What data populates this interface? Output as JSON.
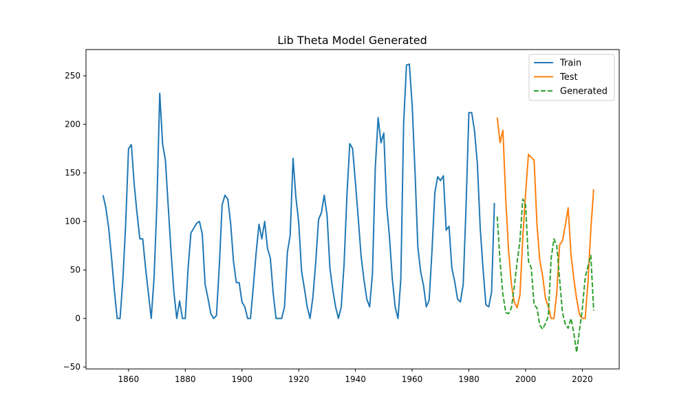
{
  "chart_data": {
    "type": "line",
    "title": "Lib Theta Model Generated",
    "xlabel": "",
    "ylabel": "",
    "xlim": [
      1845,
      2033
    ],
    "ylim": [
      -52,
      277
    ],
    "x_ticks": [
      1860,
      1880,
      1900,
      1920,
      1940,
      1960,
      1980,
      2000,
      2020
    ],
    "y_ticks": [
      -50,
      0,
      50,
      100,
      150,
      200,
      250
    ],
    "grid": false,
    "legend_position": "top-right",
    "series": [
      {
        "name": "Train",
        "color": "#1f77b4",
        "style": "solid",
        "x": [
          1851,
          1852,
          1853,
          1854,
          1855,
          1856,
          1857,
          1858,
          1859,
          1860,
          1861,
          1862,
          1863,
          1864,
          1865,
          1866,
          1867,
          1868,
          1869,
          1870,
          1871,
          1872,
          1873,
          1874,
          1875,
          1876,
          1877,
          1878,
          1879,
          1880,
          1881,
          1882,
          1883,
          1884,
          1885,
          1886,
          1887,
          1888,
          1889,
          1890,
          1891,
          1892,
          1893,
          1894,
          1895,
          1896,
          1897,
          1898,
          1899,
          1900,
          1901,
          1902,
          1903,
          1904,
          1905,
          1906,
          1907,
          1908,
          1909,
          1910,
          1911,
          1912,
          1913,
          1914,
          1915,
          1916,
          1917,
          1918,
          1919,
          1920,
          1921,
          1922,
          1923,
          1924,
          1925,
          1926,
          1927,
          1928,
          1929,
          1930,
          1931,
          1932,
          1933,
          1934,
          1935,
          1936,
          1937,
          1938,
          1939,
          1940,
          1941,
          1942,
          1943,
          1944,
          1945,
          1946,
          1947,
          1948,
          1949,
          1950,
          1951,
          1952,
          1953,
          1954,
          1955,
          1956,
          1957,
          1958,
          1959,
          1960,
          1961,
          1962,
          1963,
          1964,
          1965,
          1966,
          1967,
          1968,
          1969,
          1970,
          1971,
          1972,
          1973,
          1974,
          1975,
          1976,
          1977,
          1978,
          1979,
          1980,
          1981,
          1982,
          1983,
          1984,
          1985,
          1986,
          1987,
          1988,
          1989
        ],
        "values": [
          127,
          114,
          93,
          63,
          29,
          0,
          0,
          40,
          98,
          175,
          179,
          138,
          108,
          82,
          82,
          52,
          26,
          0,
          42,
          118,
          232,
          180,
          163,
          115,
          68,
          27,
          0,
          18,
          0,
          0,
          52,
          88,
          93,
          98,
          100,
          87,
          35,
          21,
          5,
          0,
          3,
          54,
          117,
          127,
          123,
          98,
          59,
          37,
          37,
          17,
          12,
          0,
          0,
          33,
          68,
          97,
          82,
          100,
          72,
          62,
          26,
          0,
          0,
          0,
          12,
          68,
          86,
          165,
          125,
          99,
          49,
          31,
          12,
          0,
          22,
          58,
          102,
          109,
          127,
          106,
          52,
          30,
          12,
          0,
          12,
          56,
          127,
          180,
          175,
          140,
          103,
          64,
          40,
          20,
          12,
          46,
          155,
          207,
          181,
          191,
          117,
          84,
          41,
          12,
          0,
          40,
          201,
          261,
          262,
          220,
          152,
          74,
          48,
          34,
          12,
          19,
          70,
          130,
          146,
          142,
          147,
          91,
          95,
          52,
          38,
          20,
          17,
          35,
          115,
          212,
          212,
          193,
          159,
          93,
          51,
          14,
          12,
          27,
          119
        ]
      },
      {
        "name": "Test",
        "color": "#ff7f0e",
        "style": "solid",
        "x": [
          1990,
          1991,
          1992,
          1993,
          1994,
          1995,
          1996,
          1997,
          1998,
          1999,
          2000,
          2001,
          2002,
          2003,
          2004,
          2005,
          2006,
          2007,
          2008,
          2009,
          2010,
          2011,
          2012,
          2013,
          2014,
          2015,
          2016,
          2017,
          2018,
          2019,
          2020,
          2021,
          2022,
          2023,
          2024
        ],
        "values": [
          207,
          181,
          194,
          123,
          70,
          35,
          17,
          11,
          24,
          83,
          129,
          169,
          166,
          163,
          97,
          60,
          44,
          21,
          12,
          0,
          0,
          27,
          76,
          80,
          96,
          114,
          66,
          41,
          20,
          4,
          0,
          0,
          38,
          92,
          133
        ]
      },
      {
        "name": "Generated",
        "color": "#2ca02c",
        "style": "dashed",
        "x": [
          1990,
          1991,
          1992,
          1993,
          1994,
          1995,
          1996,
          1997,
          1998,
          1999,
          2000,
          2001,
          2002,
          2003,
          2004,
          2005,
          2006,
          2007,
          2008,
          2009,
          2010,
          2011,
          2012,
          2013,
          2014,
          2015,
          2016,
          2017,
          2018,
          2019,
          2020,
          2021,
          2022,
          2023,
          2024
        ],
        "values": [
          105,
          58,
          25,
          6,
          5,
          11,
          32,
          58,
          80,
          123,
          117,
          59,
          52,
          14,
          11,
          -7,
          -11,
          -5,
          2,
          62,
          82,
          75,
          40,
          6,
          -6,
          -10,
          0,
          -15,
          -35,
          -12,
          10,
          42,
          54,
          65,
          8
        ]
      }
    ]
  }
}
